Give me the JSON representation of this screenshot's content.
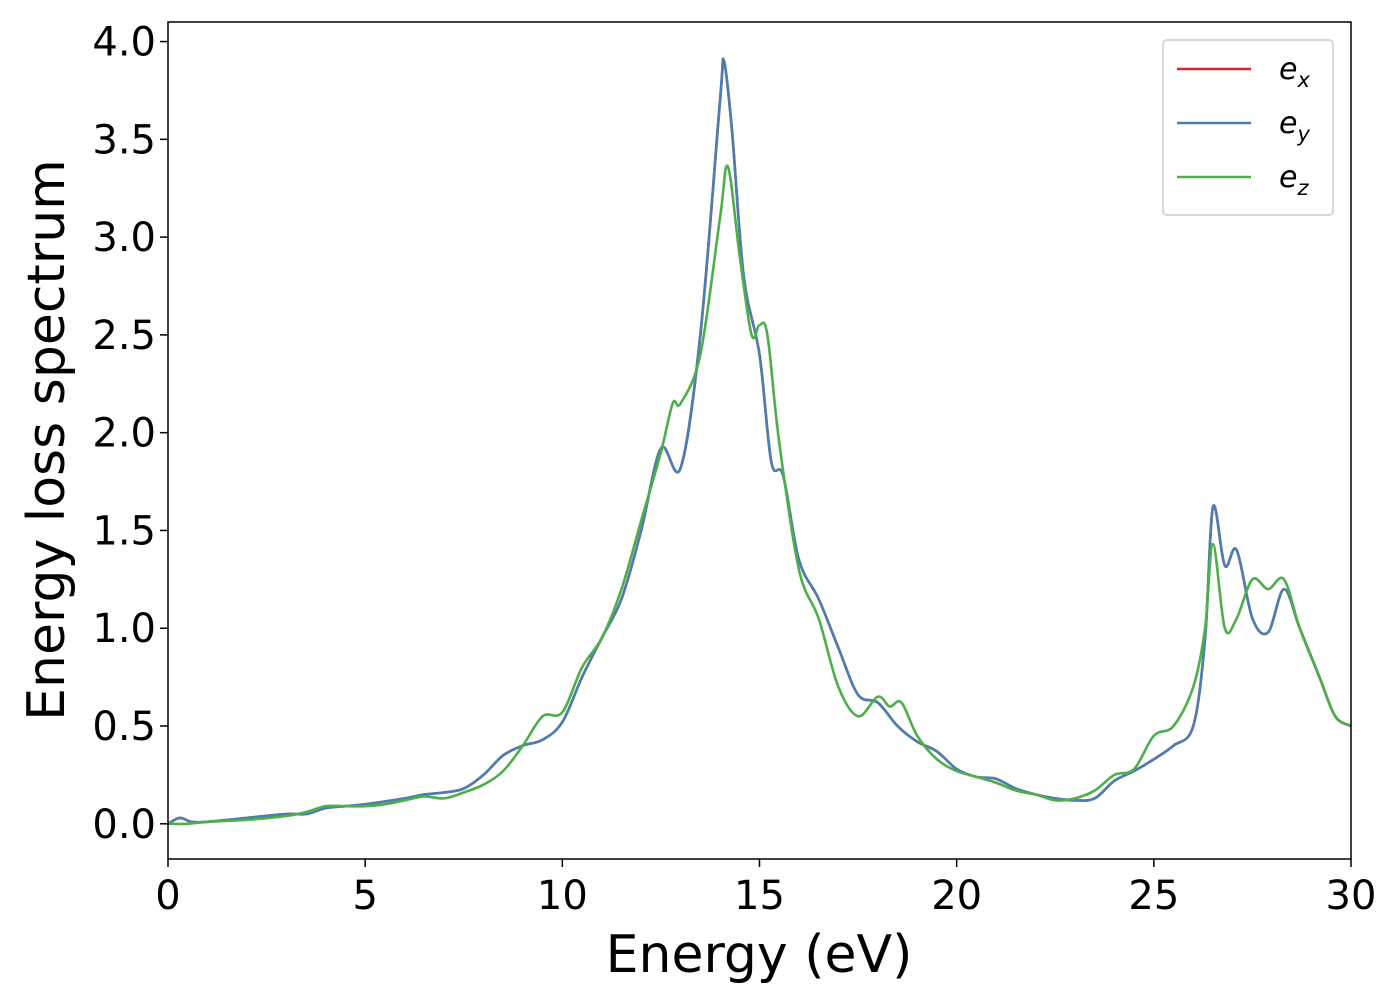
{
  "chart_data": {
    "type": "line",
    "title": "",
    "xlabel": "Energy (eV)",
    "ylabel": "Energy loss spectrum",
    "xlim": [
      0,
      30
    ],
    "ylim": [
      -0.18,
      4.1
    ],
    "xticks": [
      0,
      5,
      10,
      15,
      20,
      25,
      30
    ],
    "xtick_labels": [
      "0",
      "5",
      "10",
      "15",
      "20",
      "25",
      "30"
    ],
    "yticks": [
      0.0,
      0.5,
      1.0,
      1.5,
      2.0,
      2.5,
      3.0,
      3.5,
      4.0
    ],
    "ytick_labels": [
      "0.0",
      "0.5",
      "1.0",
      "1.5",
      "2.0",
      "2.5",
      "3.0",
      "3.5",
      "4.0"
    ],
    "grid": false,
    "legend_position": "top-right",
    "series": [
      {
        "name": "e_x",
        "legend_base": "e",
        "legend_sub": "x",
        "color": "#d62728",
        "x": [
          0,
          0.3,
          0.6,
          1,
          2,
          3,
          3.5,
          4,
          4.5,
          5,
          6,
          6.5,
          7,
          7.5,
          8,
          8.5,
          9,
          9.5,
          10,
          10.5,
          11,
          11.5,
          12,
          12.5,
          13,
          13.5,
          14,
          14.1,
          14.3,
          14.6,
          15,
          15.3,
          15.6,
          16,
          16.5,
          17,
          17.5,
          18,
          18.5,
          19,
          19.5,
          20,
          20.5,
          21,
          21.5,
          22,
          22.5,
          23,
          23.5,
          24,
          24.5,
          25,
          25.5,
          26,
          26.3,
          26.5,
          26.8,
          27.1,
          27.5,
          27.9,
          28.3,
          28.7,
          29.2,
          29.6,
          30
        ],
        "y": [
          0.0,
          0.03,
          0.01,
          0.01,
          0.03,
          0.05,
          0.05,
          0.08,
          0.09,
          0.1,
          0.13,
          0.15,
          0.16,
          0.18,
          0.25,
          0.35,
          0.4,
          0.43,
          0.52,
          0.75,
          0.95,
          1.15,
          1.5,
          1.92,
          1.82,
          2.5,
          3.7,
          3.9,
          3.55,
          2.8,
          2.4,
          1.85,
          1.78,
          1.35,
          1.15,
          0.9,
          0.66,
          0.62,
          0.5,
          0.42,
          0.37,
          0.28,
          0.24,
          0.23,
          0.18,
          0.15,
          0.13,
          0.12,
          0.13,
          0.22,
          0.27,
          0.33,
          0.4,
          0.5,
          0.95,
          1.62,
          1.32,
          1.4,
          1.05,
          0.98,
          1.2,
          1.0,
          0.75,
          0.55,
          0.5
        ]
      },
      {
        "name": "e_y",
        "legend_base": "e",
        "legend_sub": "y",
        "color": "#4a7fb0",
        "x": [
          0,
          0.3,
          0.6,
          1,
          2,
          3,
          3.5,
          4,
          4.5,
          5,
          6,
          6.5,
          7,
          7.5,
          8,
          8.5,
          9,
          9.5,
          10,
          10.5,
          11,
          11.5,
          12,
          12.5,
          13,
          13.5,
          14,
          14.1,
          14.3,
          14.6,
          15,
          15.3,
          15.6,
          16,
          16.5,
          17,
          17.5,
          18,
          18.5,
          19,
          19.5,
          20,
          20.5,
          21,
          21.5,
          22,
          22.5,
          23,
          23.5,
          24,
          24.5,
          25,
          25.5,
          26,
          26.3,
          26.5,
          26.8,
          27.1,
          27.5,
          27.9,
          28.3,
          28.7,
          29.2,
          29.6,
          30
        ],
        "y": [
          0.0,
          0.03,
          0.01,
          0.01,
          0.03,
          0.05,
          0.05,
          0.08,
          0.09,
          0.1,
          0.13,
          0.15,
          0.16,
          0.18,
          0.25,
          0.35,
          0.4,
          0.43,
          0.52,
          0.75,
          0.95,
          1.15,
          1.5,
          1.92,
          1.82,
          2.5,
          3.7,
          3.9,
          3.55,
          2.8,
          2.4,
          1.85,
          1.78,
          1.35,
          1.15,
          0.9,
          0.66,
          0.62,
          0.5,
          0.42,
          0.37,
          0.28,
          0.24,
          0.23,
          0.18,
          0.15,
          0.13,
          0.12,
          0.13,
          0.22,
          0.27,
          0.33,
          0.4,
          0.5,
          0.95,
          1.62,
          1.32,
          1.4,
          1.05,
          0.98,
          1.2,
          1.0,
          0.75,
          0.55,
          0.5
        ]
      },
      {
        "name": "e_z",
        "legend_base": "e",
        "legend_sub": "z",
        "color": "#4daf4a",
        "x": [
          0,
          0.5,
          1,
          2,
          3,
          3.5,
          4,
          4.5,
          5,
          5.5,
          6,
          6.5,
          7,
          7.5,
          8,
          8.5,
          9,
          9.5,
          10,
          10.5,
          11,
          11.5,
          12,
          12.5,
          12.8,
          13,
          13.5,
          14,
          14.2,
          14.5,
          14.8,
          15,
          15.2,
          15.5,
          16,
          16.5,
          17,
          17.5,
          18,
          18.3,
          18.6,
          19,
          19.5,
          20,
          20.5,
          21,
          21.5,
          22,
          22.5,
          23,
          23.5,
          24,
          24.5,
          25,
          25.5,
          26,
          26.3,
          26.5,
          26.8,
          27.1,
          27.5,
          27.9,
          28.3,
          28.7,
          29.2,
          29.6,
          30
        ],
        "y": [
          0.0,
          0.0,
          0.01,
          0.02,
          0.04,
          0.06,
          0.09,
          0.09,
          0.09,
          0.1,
          0.12,
          0.14,
          0.13,
          0.16,
          0.2,
          0.27,
          0.4,
          0.55,
          0.57,
          0.8,
          0.95,
          1.2,
          1.55,
          1.9,
          2.15,
          2.15,
          2.4,
          3.1,
          3.36,
          2.9,
          2.5,
          2.55,
          2.5,
          1.95,
          1.3,
          1.05,
          0.7,
          0.55,
          0.65,
          0.6,
          0.62,
          0.45,
          0.33,
          0.27,
          0.24,
          0.21,
          0.17,
          0.15,
          0.12,
          0.13,
          0.17,
          0.25,
          0.28,
          0.45,
          0.5,
          0.7,
          1.0,
          1.43,
          1.0,
          1.05,
          1.25,
          1.2,
          1.25,
          1.0,
          0.75,
          0.55,
          0.5
        ]
      }
    ]
  }
}
